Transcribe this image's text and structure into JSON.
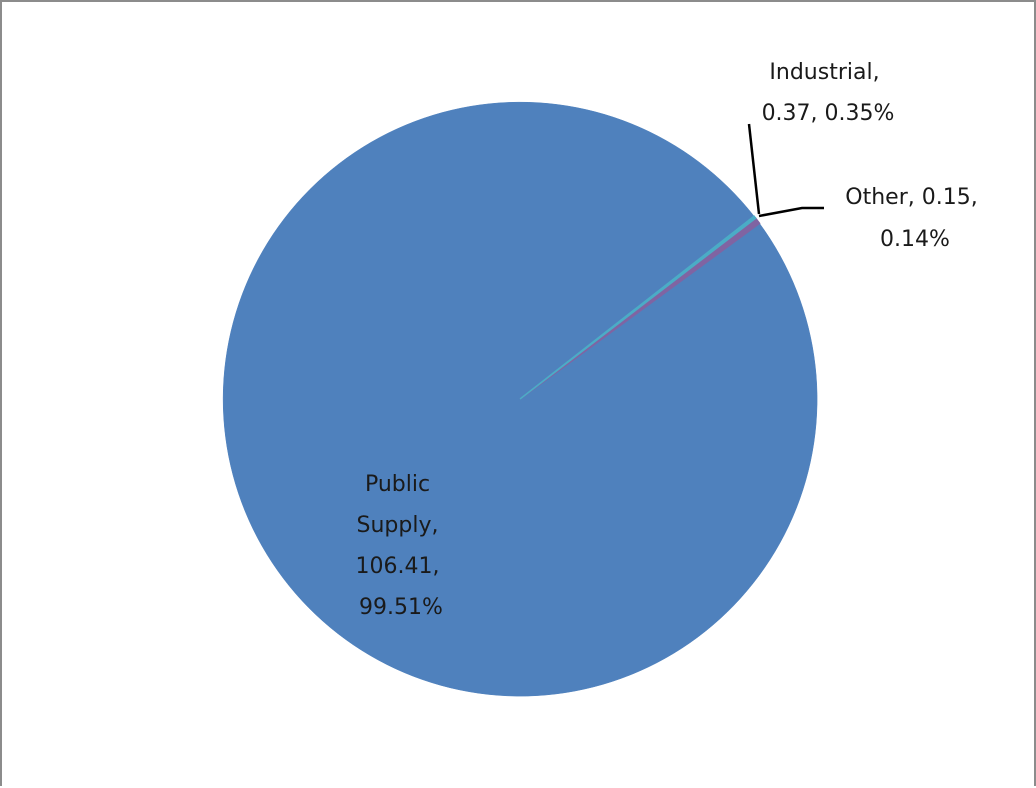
{
  "chart_data": {
    "type": "pie",
    "title": "",
    "slices": [
      {
        "label": "Public Supply",
        "value": 106.41,
        "percent": 99.51,
        "color": "#4f81bd",
        "label_lines": [
          "Public",
          "Supply,",
          "106.41,",
          "99.51%"
        ]
      },
      {
        "label": "Industrial",
        "value": 0.37,
        "percent": 0.35,
        "color": "#8064a2",
        "label_lines": [
          "Industrial,",
          "0.37, 0.35%"
        ]
      },
      {
        "label": "Other",
        "value": 0.15,
        "percent": 0.14,
        "color": "#4bacc6",
        "label_lines": [
          "Other, 0.15,",
          "0.14%"
        ]
      }
    ],
    "start_angle_deg": 38,
    "legend": "none"
  }
}
